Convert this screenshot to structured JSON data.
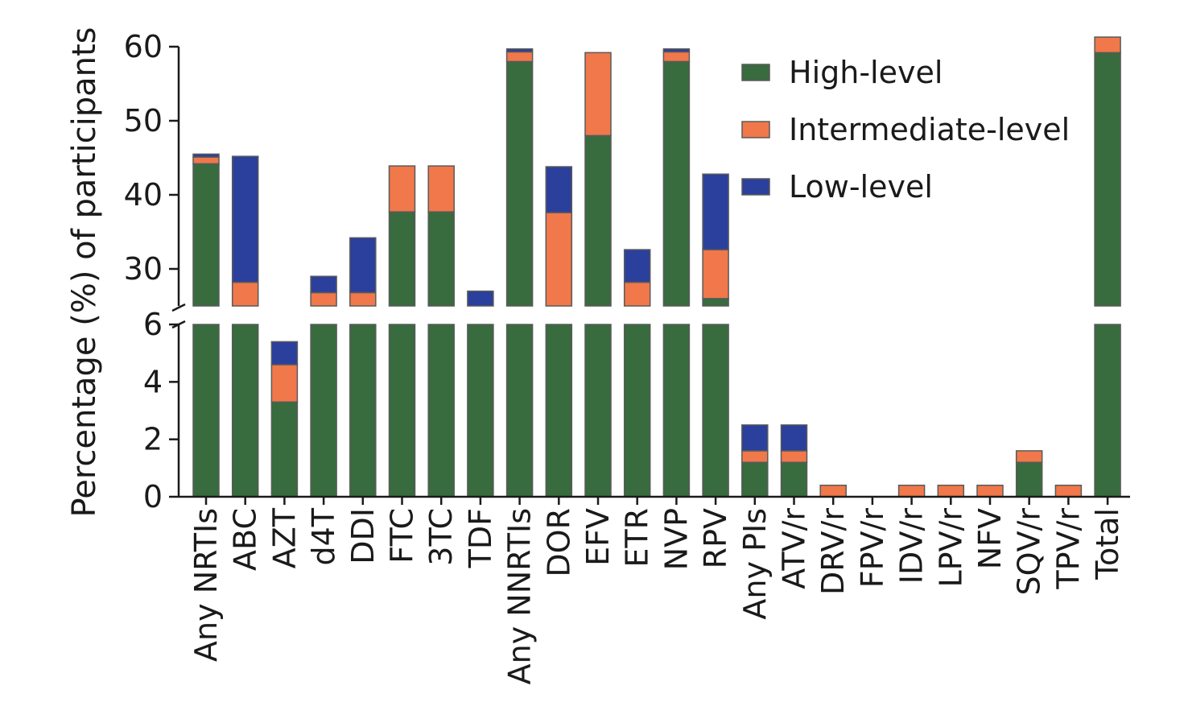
{
  "chart_data": {
    "type": "bar",
    "stacked": true,
    "broken_y_axis": true,
    "ylabel": "Percentage (%) of participants",
    "xlabel": "",
    "lower_ylim": [
      0,
      6
    ],
    "upper_ylim": [
      25,
      60
    ],
    "lower_ticks": [
      "0",
      "2",
      "4",
      "6"
    ],
    "upper_ticks": [
      "30",
      "40",
      "50",
      "60"
    ],
    "legend_position": "top-right",
    "categories": [
      "Any NRTIs",
      "ABC",
      "AZT",
      "d4T",
      "DDI",
      "FTC",
      "3TC",
      "TDF",
      "Any NNRTIs",
      "DOR",
      "EFV",
      "ETR",
      "NVP",
      "RPV",
      "Any PIs",
      "ATV/r",
      "DRV/r",
      "FPV/r",
      "IDV/r",
      "LPV/r",
      "NFV",
      "SQV/r",
      "TPV/r",
      "Total"
    ],
    "series": [
      {
        "name": "High-level",
        "color": "#386b3e",
        "values": [
          44.2,
          8.0,
          3.3,
          8.0,
          8.0,
          37.7,
          37.7,
          8.0,
          58.0,
          8.0,
          48.0,
          8.0,
          58.0,
          26.0,
          1.2,
          1.2,
          0,
          0,
          0,
          0,
          0,
          1.2,
          0,
          59.2
        ]
      },
      {
        "name": "Intermediate-level",
        "color": "#f0784a",
        "values": [
          0.9,
          20.2,
          1.3,
          18.8,
          18.8,
          6.2,
          6.2,
          0,
          1.3,
          29.6,
          11.2,
          20.2,
          1.3,
          6.6,
          0.4,
          0.4,
          0.4,
          0,
          0.4,
          0.4,
          0.4,
          0.4,
          0.4,
          2.1
        ]
      },
      {
        "name": "Low-level",
        "color": "#2b3f9c",
        "values": [
          0.4,
          17.0,
          0.8,
          2.2,
          7.4,
          0,
          0,
          19.0,
          0.4,
          6.2,
          0,
          4.4,
          0.4,
          10.2,
          0.9,
          0.9,
          0,
          0,
          0,
          0,
          0,
          0,
          0,
          0
        ]
      }
    ]
  }
}
